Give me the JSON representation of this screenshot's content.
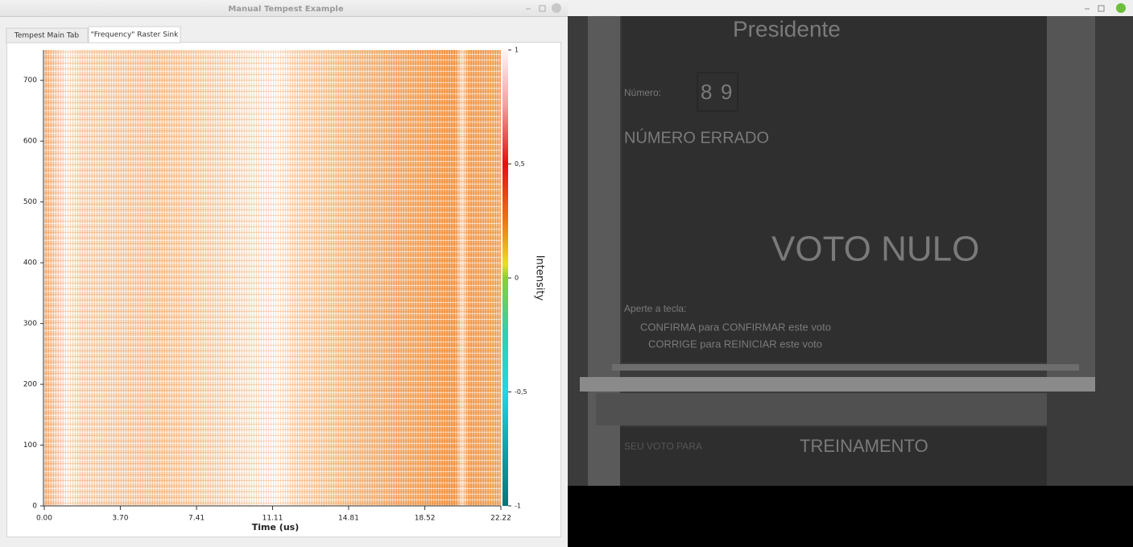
{
  "left_window": {
    "title": "Manual Tempest Example",
    "tabs": [
      "Tempest Main Tab",
      "\"Frequency\" Raster Sink"
    ]
  },
  "chart_data": {
    "type": "raster",
    "xlabel": "Time (us)",
    "colorbar_label": "Intensity",
    "xlim": [
      0,
      22.22
    ],
    "xticks": [
      {
        "value": 0,
        "label": "0.00"
      },
      {
        "value": 3.7,
        "label": "3.70"
      },
      7.41,
      11.11,
      14.81,
      18.52,
      22.22
    ],
    "ylim": [
      0,
      750
    ],
    "yticks": [
      0,
      100,
      200,
      300,
      400,
      500,
      600,
      700
    ],
    "clim": [
      -1,
      1
    ],
    "cticks": [
      1,
      {
        "value": 0.5,
        "label": "0,5"
      },
      0,
      {
        "value": -0.5,
        "label": "-0,5"
      },
      -1
    ]
  },
  "right_window": {
    "texts": [
      "Presidente",
      "Número:",
      "8",
      "9",
      "NÚMERO ERRADO",
      "VOTO NULO",
      "Aperte a tecla:",
      "CONFIRMA para CONFIRMAR este voto",
      "CORRIGE para REINICIAR este voto",
      "SEU VOTO PARA",
      "TREINAMENTO"
    ]
  }
}
